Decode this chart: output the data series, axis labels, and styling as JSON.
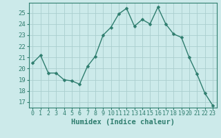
{
  "x": [
    0,
    1,
    2,
    3,
    4,
    5,
    6,
    7,
    8,
    9,
    10,
    11,
    12,
    13,
    14,
    15,
    16,
    17,
    18,
    19,
    20,
    21,
    22,
    23
  ],
  "y": [
    20.5,
    21.2,
    19.6,
    19.6,
    19.0,
    18.9,
    18.6,
    20.2,
    21.1,
    23.0,
    23.7,
    24.9,
    25.4,
    23.8,
    24.4,
    24.0,
    25.5,
    24.0,
    23.1,
    22.8,
    21.0,
    19.5,
    17.8,
    16.7
  ],
  "line_color": "#2e7d6e",
  "marker": "D",
  "marker_size": 2.5,
  "bg_color": "#cceaea",
  "grid_color": "#aacece",
  "xlabel": "Humidex (Indice chaleur)",
  "xlabel_fontsize": 7.5,
  "ylabel_ticks": [
    17,
    18,
    19,
    20,
    21,
    22,
    23,
    24,
    25
  ],
  "ylim": [
    16.5,
    25.9
  ],
  "xlim": [
    -0.5,
    23.5
  ],
  "tick_color": "#2e7d6e",
  "tick_fontsize": 6.5,
  "axis_color": "#2e7d6e",
  "linewidth": 1.0
}
